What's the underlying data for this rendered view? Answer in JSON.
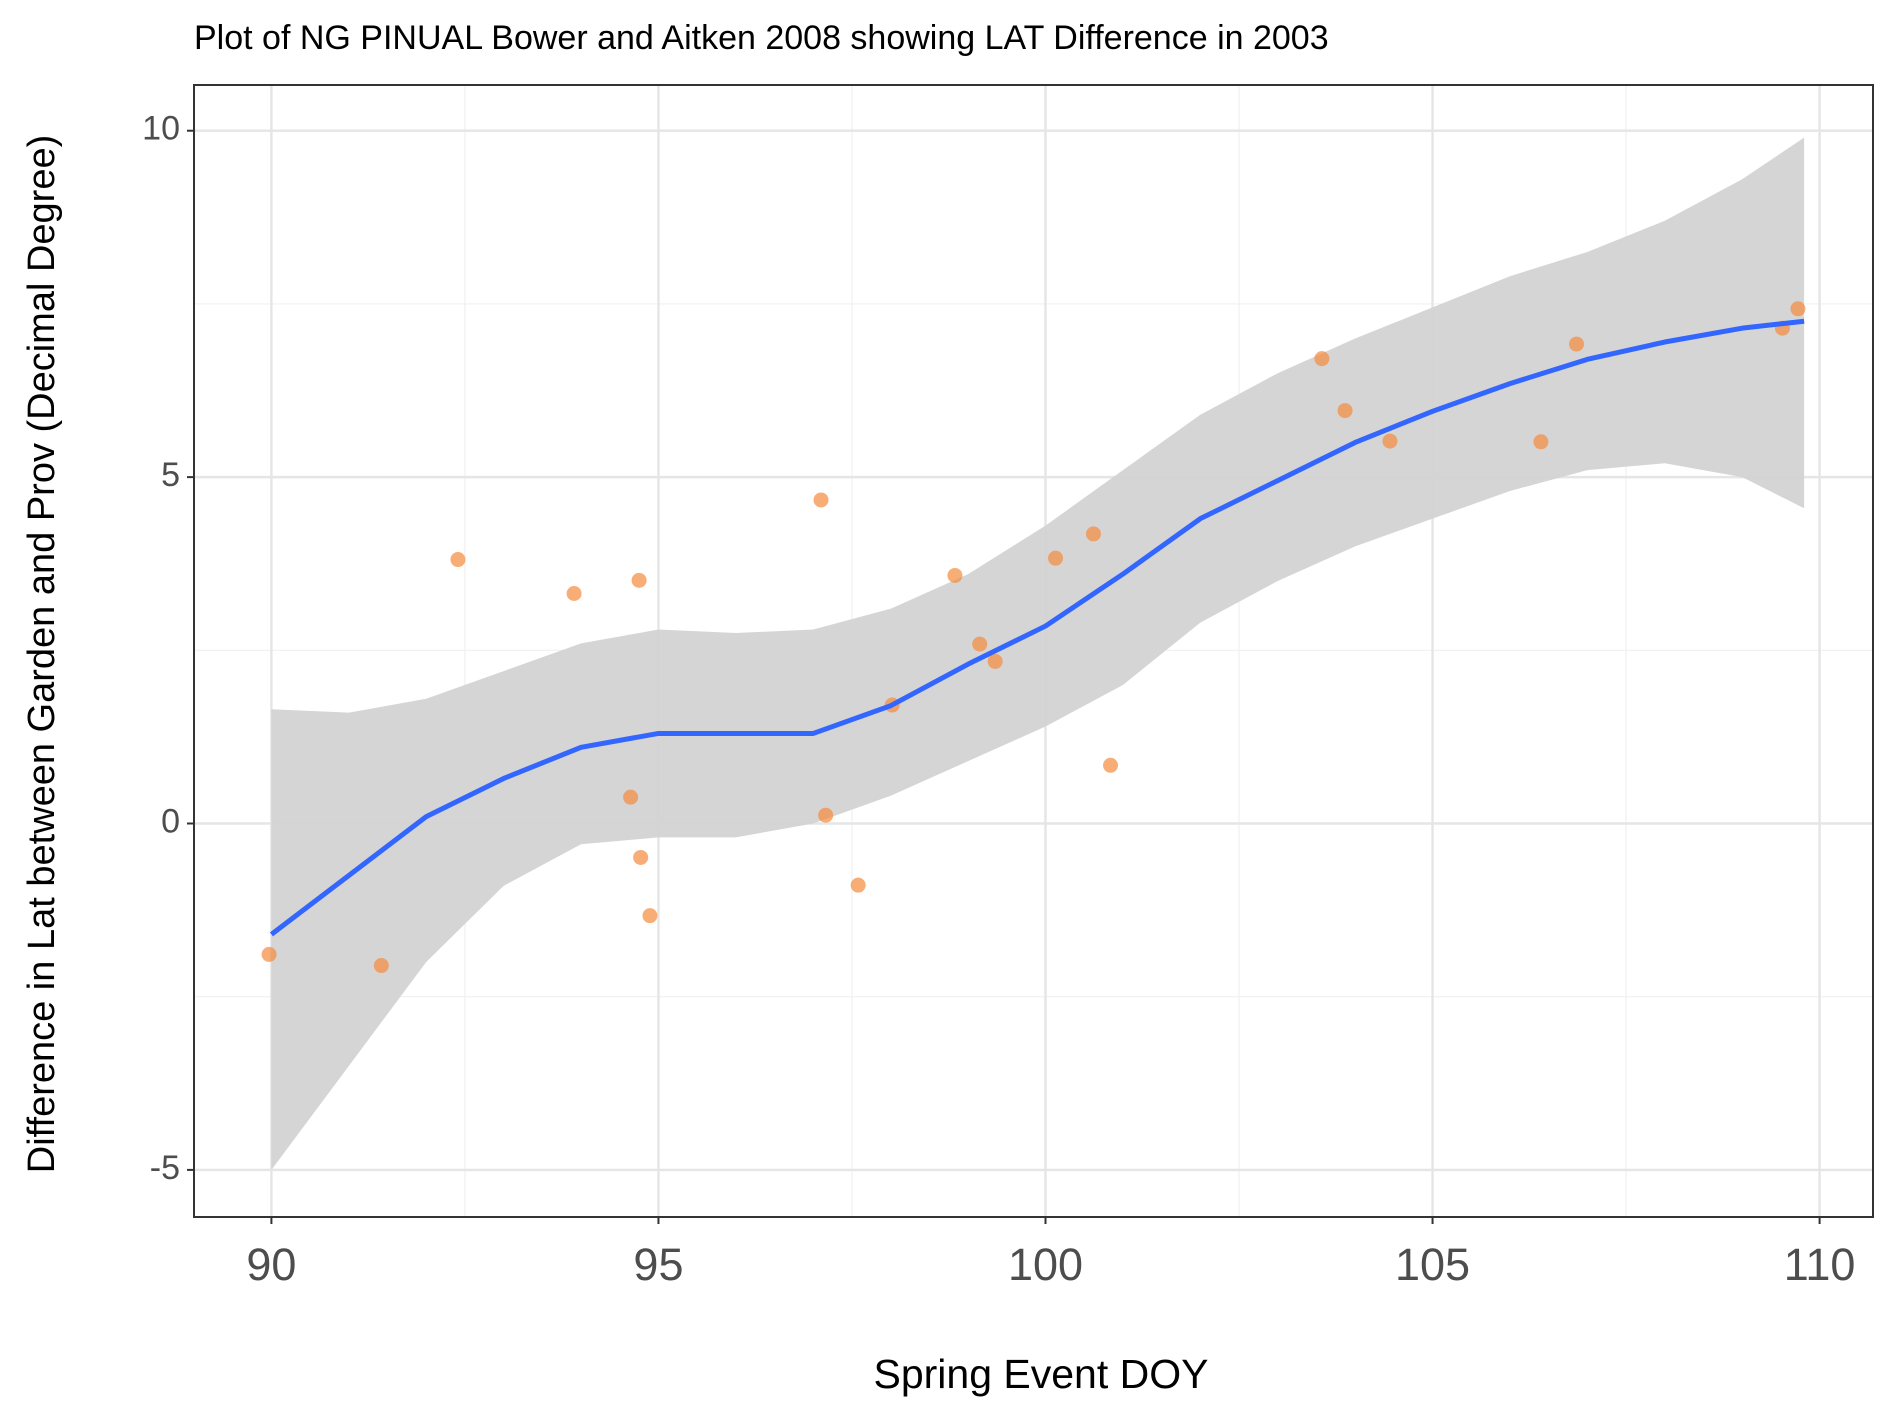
{
  "chart_data": {
    "type": "scatter",
    "title": "Plot of NG PINUAL Bower and Aitken 2008 showing LAT Difference in 2003",
    "x_label": "Spring Event DOY",
    "y_label": "Difference in Lat between Garden and Prov (Decimal Degree)",
    "xlim": [
      89.0,
      110.69
    ],
    "ylim": [
      -5.68,
      10.66
    ],
    "xticks": [
      90,
      95,
      100,
      105,
      110
    ],
    "yticks": [
      -5,
      0,
      5,
      10
    ],
    "xminor": [
      92.5,
      97.5,
      102.5,
      107.5
    ],
    "yminor": [
      -2.5,
      2.5,
      7.5
    ],
    "grid": true,
    "points": {
      "color": "#f58a3c",
      "x": [
        89.97,
        91.42,
        92.41,
        93.91,
        94.64,
        94.75,
        94.77,
        94.89,
        97.1,
        97.16,
        97.58,
        98.02,
        98.83,
        99.15,
        99.35,
        100.13,
        100.62,
        100.84,
        103.57,
        103.87,
        104.45,
        106.4,
        106.86,
        109.52,
        109.72
      ],
      "y": [
        -1.89,
        -2.05,
        3.81,
        3.32,
        0.38,
        3.51,
        -0.49,
        -1.33,
        4.67,
        0.12,
        -0.89,
        1.71,
        3.58,
        2.59,
        2.34,
        3.83,
        4.18,
        0.84,
        6.71,
        5.96,
        5.52,
        5.51,
        6.92,
        7.15,
        7.43
      ]
    },
    "smooth": {
      "color": "#3366ff",
      "band_color": "#d3d3d3",
      "x": [
        90,
        91,
        92,
        93,
        94,
        95,
        96,
        97,
        98,
        99,
        100,
        101,
        102,
        103,
        104,
        105,
        106,
        107,
        108,
        109,
        109.8
      ],
      "y": [
        -1.6,
        -0.75,
        0.1,
        0.65,
        1.1,
        1.3,
        1.3,
        1.3,
        1.7,
        2.3,
        2.85,
        3.6,
        4.4,
        4.95,
        5.5,
        5.95,
        6.35,
        6.7,
        6.95,
        7.15,
        7.25
      ],
      "lower": [
        -5.0,
        -3.5,
        -2.0,
        -0.9,
        -0.3,
        -0.2,
        -0.2,
        0.0,
        0.4,
        0.9,
        1.4,
        2.0,
        2.9,
        3.5,
        4.0,
        4.4,
        4.8,
        5.1,
        5.2,
        5.0,
        4.55
      ],
      "upper": [
        1.65,
        1.6,
        1.8,
        2.2,
        2.6,
        2.8,
        2.75,
        2.8,
        3.1,
        3.6,
        4.3,
        5.1,
        5.9,
        6.5,
        7.0,
        7.45,
        7.9,
        8.25,
        8.7,
        9.3,
        9.9
      ]
    }
  }
}
